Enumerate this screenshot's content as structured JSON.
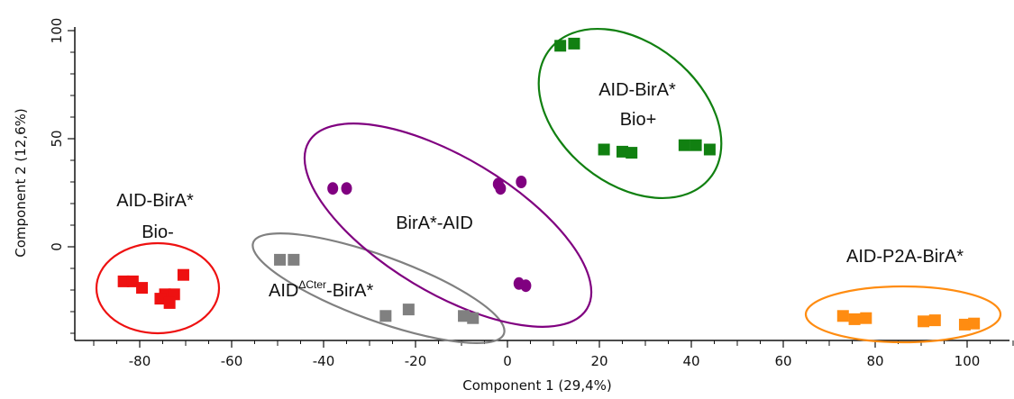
{
  "chart_data": {
    "type": "scatter",
    "title": "",
    "xlabel": "Component 1 (29,4%)",
    "ylabel": "Component 2 (12,6%)",
    "xlim": [
      -93,
      111
    ],
    "ylim": [
      -44,
      104
    ],
    "xticks": [
      -80,
      -60,
      -40,
      -20,
      0,
      20,
      40,
      60,
      80,
      100
    ],
    "yticks": [
      0,
      50,
      100
    ],
    "grid": false,
    "legend": "none",
    "groups": [
      {
        "label_lines": [
          "AID-BirA*",
          "Bio-"
        ],
        "color": "#ee1111",
        "marker": "square",
        "points": [
          [
            -83.5,
            -16
          ],
          [
            -81.5,
            -16
          ],
          [
            -79.5,
            -19
          ],
          [
            -74.5,
            -22
          ],
          [
            -72.5,
            -22
          ],
          [
            -75.5,
            -24
          ],
          [
            -73.5,
            -26
          ],
          [
            -70.5,
            -13
          ]
        ]
      },
      {
        "label_lines": [
          "AIDΔCter-BirA*"
        ],
        "label_parts": {
          "pre": "AID",
          "sup": "ΔCter",
          "post": "-BirA*"
        },
        "color": "#808080",
        "marker": "square",
        "points": [
          [
            -49.5,
            -6
          ],
          [
            -46.5,
            -6
          ],
          [
            -26.5,
            -32
          ],
          [
            -21.5,
            -29
          ],
          [
            -9.5,
            -32
          ],
          [
            -7.5,
            -33
          ]
        ]
      },
      {
        "label_lines": [
          "BirA*-AID"
        ],
        "color": "#800080",
        "marker": "circle",
        "points": [
          [
            -38,
            27
          ],
          [
            -35,
            27
          ],
          [
            -2,
            29
          ],
          [
            -1.5,
            27
          ],
          [
            3,
            30
          ],
          [
            2.5,
            -17
          ],
          [
            4,
            -18
          ]
        ]
      },
      {
        "label_lines": [
          "AID-BirA*",
          "Bio+"
        ],
        "color": "#118011",
        "marker": "square",
        "points": [
          [
            11.5,
            93
          ],
          [
            14.5,
            94
          ],
          [
            21,
            45
          ],
          [
            25,
            44
          ],
          [
            27,
            43.5
          ],
          [
            38.5,
            47
          ],
          [
            41,
            47
          ],
          [
            44,
            45
          ]
        ]
      },
      {
        "label_lines": [
          "AID-P2A-BirA*"
        ],
        "color": "#ff8c11",
        "marker": "square",
        "points": [
          [
            73,
            -32
          ],
          [
            75.5,
            -33.5
          ],
          [
            78,
            -33
          ],
          [
            90.5,
            -34.5
          ],
          [
            93,
            -34
          ],
          [
            99.5,
            -36
          ],
          [
            101.5,
            -35.5
          ]
        ]
      }
    ]
  }
}
